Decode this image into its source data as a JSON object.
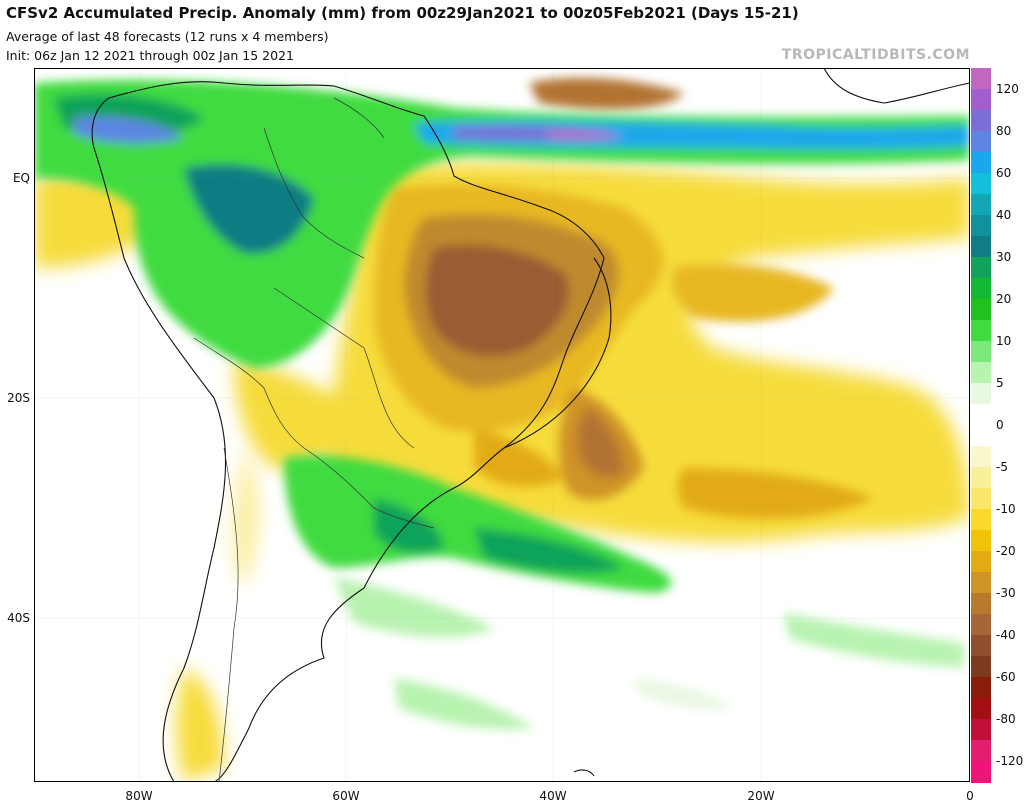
{
  "header": {
    "title": "CFSv2 Accumulated Precip. Anomaly (mm) from 00z29Jan2021 to 00z05Feb2021 (Days 15-21)",
    "subtitle1": "Average of last 48 forecasts (12 runs x 4 members)",
    "subtitle2": "Init: 06z Jan 12 2021 through 00z Jan 15 2021",
    "brand": "TROPICALTIDBITS.COM"
  },
  "map": {
    "lat_labels": [
      "EQ",
      "20S",
      "40S"
    ],
    "lon_labels": [
      "80W",
      "60W",
      "40W",
      "20W",
      "0"
    ],
    "region": "South America"
  },
  "colorbar": {
    "unit": "mm",
    "labels": [
      "120",
      "80",
      "60",
      "40",
      "30",
      "20",
      "10",
      "5",
      "0",
      "-5",
      "-10",
      "-20",
      "-30",
      "-40",
      "-60",
      "-80",
      "-120"
    ],
    "colors": [
      "#c266c2",
      "#a05fcc",
      "#7b6fd6",
      "#5d86e3",
      "#1aa7ec",
      "#14bfda",
      "#13a6b4",
      "#11919c",
      "#0f7d83",
      "#11a35a",
      "#13b832",
      "#1fc21f",
      "#3fdb3f",
      "#7be87b",
      "#b8f3b0",
      "#e8f8e2",
      "#ffffff",
      "#ffffff",
      "#fbf7cd",
      "#fbf09a",
      "#fbe66a",
      "#fbd92a",
      "#f2c10a",
      "#e2ab12",
      "#cf9326",
      "#b97a2e",
      "#a5673a",
      "#8f4f30",
      "#7e3a1e",
      "#8a1c0a",
      "#a10f12",
      "#c0103a",
      "#e21f6e",
      "#f0137a"
    ]
  }
}
